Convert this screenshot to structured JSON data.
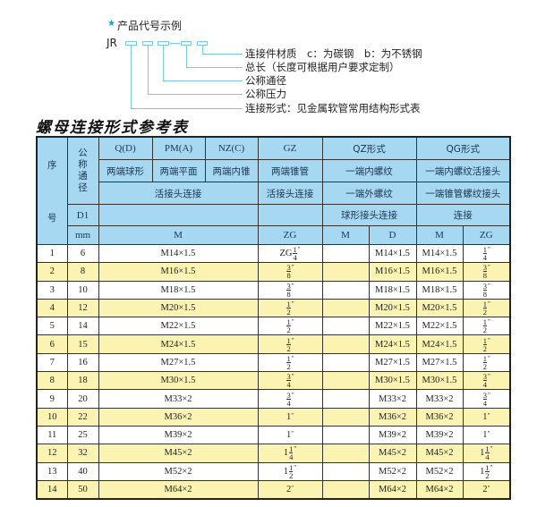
{
  "diagram": {
    "title": "产品代号示例",
    "prefix": "JR",
    "dash": "-",
    "legend": [
      "连接件材质　c：为碳钢　b：为不锈钢",
      "总长（长度可根据用户要求定制）",
      "公称通径",
      "公称压力",
      "连接形式：见金属软管常用结构形式表"
    ],
    "accent_color": "#1aa0d8",
    "line_color": "#7cc6e8"
  },
  "table": {
    "title": "螺母连接形式参考表",
    "header": {
      "seq_top": "序",
      "seq_bottom": "号",
      "dn": "公称通径",
      "d1": "D1",
      "mm": "mm",
      "r1": [
        "Q(D)",
        "PM(A)",
        "NZ(C)",
        "GZ",
        "QZ形式",
        "QG形式"
      ],
      "r2": [
        "两端球形",
        "两端平面",
        "两端内锥",
        "两端锥管",
        "一端内螺纹",
        "一端内螺纹活接头"
      ],
      "r3": [
        "活接头连接",
        "活接头连接",
        "一端外螺纹",
        "一端锥管螺纹接头"
      ],
      "r4": [
        "",
        "",
        "球形接头连接",
        "连接"
      ],
      "r5": [
        "M",
        "ZG",
        "M",
        "D",
        "M",
        "ZG"
      ]
    },
    "header_color": "#a6d8f2",
    "stripe_color": "#fbf3b2",
    "rows": [
      {
        "no": "1",
        "d1": "6",
        "m": "M14×1.5",
        "zg": {
          "pre": "ZG",
          "whole": "",
          "num": "1",
          "den": "4"
        },
        "qz_m": "",
        "qz_d": "M14×1.5",
        "qg_m": "M14×1.5",
        "qg_zg": {
          "pre": "",
          "whole": "",
          "num": "1",
          "den": "4"
        }
      },
      {
        "no": "2",
        "d1": "8",
        "m": "M16×1.5",
        "zg": {
          "pre": "",
          "whole": "",
          "num": "3",
          "den": "8"
        },
        "qz_m": "",
        "qz_d": "M16×1.5",
        "qg_m": "M16×1.5",
        "qg_zg": {
          "pre": "",
          "whole": "",
          "num": "3",
          "den": "8"
        }
      },
      {
        "no": "3",
        "d1": "10",
        "m": "M18×1.5",
        "zg": {
          "pre": "",
          "whole": "",
          "num": "3",
          "den": "8"
        },
        "qz_m": "",
        "qz_d": "M18×1.5",
        "qg_m": "M18×1.5",
        "qg_zg": {
          "pre": "",
          "whole": "",
          "num": "3",
          "den": "8"
        }
      },
      {
        "no": "4",
        "d1": "12",
        "m": "M20×1.5",
        "zg": {
          "pre": "",
          "whole": "",
          "num": "1",
          "den": "2"
        },
        "qz_m": "",
        "qz_d": "M20×1.5",
        "qg_m": "M20×1.5",
        "qg_zg": {
          "pre": "",
          "whole": "",
          "num": "1",
          "den": "2"
        }
      },
      {
        "no": "5",
        "d1": "14",
        "m": "M22×1.5",
        "zg": {
          "pre": "",
          "whole": "",
          "num": "1",
          "den": "2"
        },
        "qz_m": "",
        "qz_d": "M22×1.5",
        "qg_m": "M22×1.5",
        "qg_zg": {
          "pre": "",
          "whole": "",
          "num": "1",
          "den": "2"
        }
      },
      {
        "no": "6",
        "d1": "15",
        "m": "M24×1.5",
        "zg": {
          "pre": "",
          "whole": "",
          "num": "1",
          "den": "2"
        },
        "qz_m": "",
        "qz_d": "M24×1.5",
        "qg_m": "M24×1.5",
        "qg_zg": {
          "pre": "",
          "whole": "",
          "num": "1",
          "den": "2"
        }
      },
      {
        "no": "7",
        "d1": "16",
        "m": "M27×1.5",
        "zg": {
          "pre": "",
          "whole": "",
          "num": "1",
          "den": "2"
        },
        "qz_m": "",
        "qz_d": "M27×1.5",
        "qg_m": "M27×1.5",
        "qg_zg": {
          "pre": "",
          "whole": "",
          "num": "1",
          "den": "2"
        }
      },
      {
        "no": "8",
        "d1": "18",
        "m": "M30×1.5",
        "zg": {
          "pre": "",
          "whole": "",
          "num": "3",
          "den": "4"
        },
        "qz_m": "",
        "qz_d": "M30×1.5",
        "qg_m": "M30×1.5",
        "qg_zg": {
          "pre": "",
          "whole": "",
          "num": "3",
          "den": "4"
        }
      },
      {
        "no": "9",
        "d1": "20",
        "m": "M33×2",
        "zg": {
          "pre": "",
          "whole": "",
          "num": "3",
          "den": "4"
        },
        "qz_m": "",
        "qz_d": "M33×2",
        "qg_m": "M33×2",
        "qg_zg": {
          "pre": "",
          "whole": "",
          "num": "3",
          "den": "4"
        }
      },
      {
        "no": "10",
        "d1": "22",
        "m": "M36×2",
        "zg": {
          "pre": "",
          "whole": "1",
          "num": "",
          "den": ""
        },
        "qz_m": "",
        "qz_d": "M36×2",
        "qg_m": "M36×2",
        "qg_zg": {
          "pre": "",
          "whole": "1",
          "num": "",
          "den": ""
        }
      },
      {
        "no": "11",
        "d1": "25",
        "m": "M39×2",
        "zg": {
          "pre": "",
          "whole": "1",
          "num": "",
          "den": ""
        },
        "qz_m": "",
        "qz_d": "M39×2",
        "qg_m": "M39×2",
        "qg_zg": {
          "pre": "",
          "whole": "1",
          "num": "",
          "den": ""
        }
      },
      {
        "no": "12",
        "d1": "32",
        "m": "M45×2",
        "zg": {
          "pre": "",
          "whole": "1",
          "num": "1",
          "den": "4"
        },
        "qz_m": "",
        "qz_d": "M45×2",
        "qg_m": "M45×2",
        "qg_zg": {
          "pre": "",
          "whole": "1",
          "num": "1",
          "den": "4"
        }
      },
      {
        "no": "13",
        "d1": "40",
        "m": "M52×2",
        "zg": {
          "pre": "",
          "whole": "1",
          "num": "1",
          "den": "2"
        },
        "qz_m": "",
        "qz_d": "M52×2",
        "qg_m": "M52×2",
        "qg_zg": {
          "pre": "",
          "whole": "1",
          "num": "1",
          "den": "2"
        }
      },
      {
        "no": "14",
        "d1": "50",
        "m": "M64×2",
        "zg": {
          "pre": "",
          "whole": "2",
          "num": "",
          "den": ""
        },
        "qz_m": "",
        "qz_d": "M64×2",
        "qg_m": "M64×2",
        "qg_zg": {
          "pre": "",
          "whole": "2",
          "num": "",
          "den": ""
        }
      }
    ],
    "inch_mark": "\""
  }
}
